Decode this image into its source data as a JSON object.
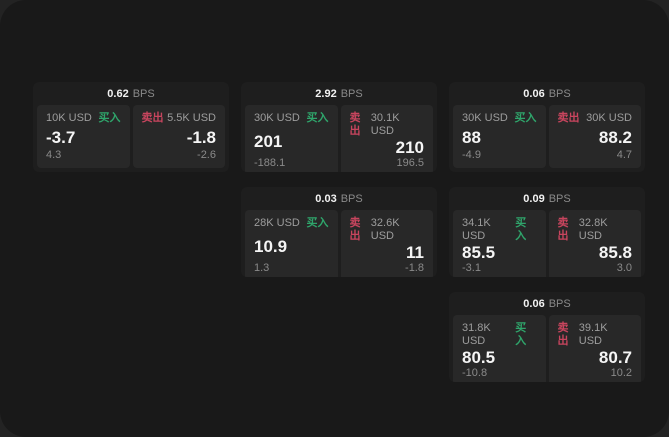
{
  "labels": {
    "bps_unit": "BPS",
    "buy": "买入",
    "sell": "卖出"
  },
  "colors": {
    "outer_bg": "#232323",
    "panel_bg": "#191919",
    "card_bg": "#1e1e1e",
    "tile_bg": "#282828",
    "buy_green": "#2fa56b",
    "sell_red": "#c8455e"
  },
  "cards": [
    {
      "bps": "0.62",
      "buy": {
        "size": "10K USD",
        "price": "-3.7",
        "delta": "4.3"
      },
      "sell": {
        "size": "5.5K USD",
        "price": "-1.8",
        "delta": "-2.6"
      }
    },
    {
      "bps": "2.92",
      "buy": {
        "size": "30K USD",
        "price": "201",
        "delta": "-188.1"
      },
      "sell": {
        "size": "30.1K USD",
        "price": "210",
        "delta": "196.5"
      }
    },
    {
      "bps": "0.03",
      "buy": {
        "size": "28K USD",
        "price": "10.9",
        "delta": "1.3"
      },
      "sell": {
        "size": "32.6K USD",
        "price": "11",
        "delta": "-1.8"
      }
    },
    {
      "bps": "0.06",
      "buy": {
        "size": "30K USD",
        "price": "88",
        "delta": "-4.9"
      },
      "sell": {
        "size": "30K USD",
        "price": "88.2",
        "delta": "4.7"
      }
    },
    {
      "bps": "0.09",
      "buy": {
        "size": "34.1K USD",
        "price": "85.5",
        "delta": "-3.1"
      },
      "sell": {
        "size": "32.8K USD",
        "price": "85.8",
        "delta": "3.0"
      }
    },
    {
      "bps": "0.06",
      "buy": {
        "size": "31.8K USD",
        "price": "80.5",
        "delta": "-10.8"
      },
      "sell": {
        "size": "39.1K USD",
        "price": "80.7",
        "delta": "10.2"
      }
    }
  ]
}
